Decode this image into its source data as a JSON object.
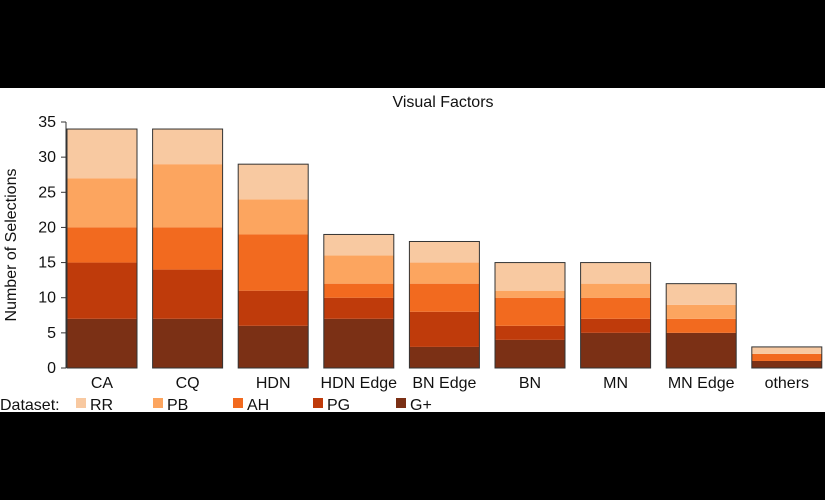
{
  "chart_data": {
    "type": "bar",
    "stacked": true,
    "title": "Visual Factors",
    "xlabel": "",
    "ylabel": "Number of Selections",
    "ylim": [
      0,
      35
    ],
    "yticks": [
      0,
      5,
      10,
      15,
      20,
      25,
      30,
      35
    ],
    "grid": false,
    "legend_position": "bottom",
    "legend_title": "Dataset:",
    "categories": [
      "CA",
      "CQ",
      "HDN",
      "HDN Edge",
      "BN Edge",
      "BN",
      "MN",
      "MN Edge",
      "others"
    ],
    "series": [
      {
        "name": "G+",
        "color": "#7b3015",
        "values": [
          7,
          7,
          6,
          7,
          3,
          4,
          5,
          5,
          1
        ]
      },
      {
        "name": "PG",
        "color": "#bf3b0b",
        "values": [
          8,
          7,
          5,
          3,
          5,
          2,
          2,
          0,
          0
        ]
      },
      {
        "name": "AH",
        "color": "#f26a1f",
        "values": [
          5,
          6,
          8,
          2,
          4,
          4,
          3,
          2,
          1
        ]
      },
      {
        "name": "PB",
        "color": "#fca55f",
        "values": [
          7,
          9,
          5,
          4,
          3,
          1,
          2,
          2,
          0
        ]
      },
      {
        "name": "RR",
        "color": "#f8c9a1",
        "values": [
          7,
          5,
          5,
          3,
          3,
          4,
          3,
          3,
          1
        ]
      }
    ],
    "legend_order": [
      "RR",
      "PB",
      "AH",
      "PG",
      "G+"
    ]
  }
}
